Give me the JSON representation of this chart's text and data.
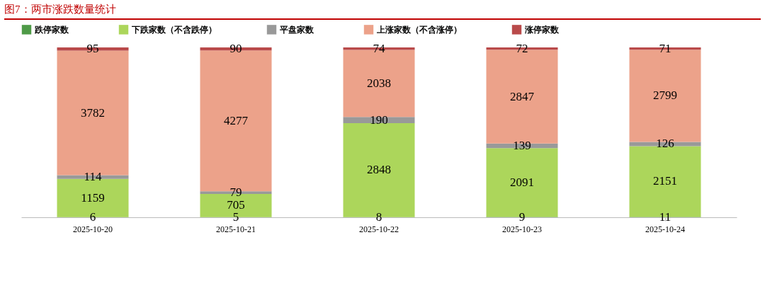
{
  "chart_data": {
    "type": "bar",
    "title": "图7：两市涨跌数量统计",
    "categories": [
      "2025-10-20",
      "2025-10-21",
      "2025-10-22",
      "2025-10-23",
      "2025-10-24"
    ],
    "series": [
      {
        "name": "跌停家数",
        "color": "#4e9a47",
        "values": [
          6,
          5,
          8,
          9,
          11
        ]
      },
      {
        "name": "下跌家数（不含跌停）",
        "color": "#acd65b",
        "values": [
          1159,
          705,
          2848,
          2091,
          2151
        ]
      },
      {
        "name": "平盘家数",
        "color": "#999999",
        "values": [
          114,
          79,
          190,
          139,
          126
        ]
      },
      {
        "name": "上涨家数（不含涨停）",
        "color": "#eca28a",
        "values": [
          3782,
          4277,
          2038,
          2847,
          2799
        ]
      },
      {
        "name": "涨停家数",
        "color": "#b94a4a",
        "values": [
          95,
          90,
          74,
          72,
          71
        ]
      }
    ],
    "stacked": true,
    "data_labels": true,
    "legend": "top",
    "tick_labels": "x",
    "grid": false
  }
}
